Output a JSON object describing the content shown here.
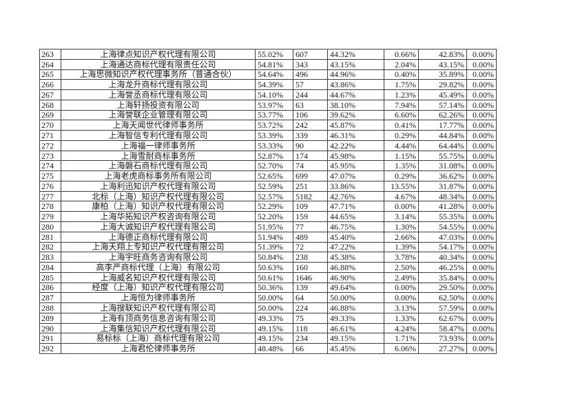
{
  "colors": {
    "border": "#3d3d3d",
    "text": "#1a1a1a",
    "background": "#ffffff"
  },
  "table": {
    "rows": [
      [
        "263",
        "上海律点知识产权代理有限公司",
        "55.02%",
        "607",
        "44.32%",
        "0.66%",
        "42.83%",
        "0.00%"
      ],
      [
        "264",
        "上海通达商标代理有限责任公司",
        "54.81%",
        "343",
        "43.15%",
        "2.04%",
        "43.15%",
        "0.00%"
      ],
      [
        "265",
        "上海思微知识产权代理事务所（普通合伙）",
        "54.64%",
        "496",
        "44.96%",
        "0.40%",
        "35.89%",
        "0.00%"
      ],
      [
        "266",
        "上海龙升商标代理有限公司",
        "54.39%",
        "57",
        "43.86%",
        "1.75%",
        "29.82%",
        "0.00%"
      ],
      [
        "267",
        "上海誉丞商标代理有限公司",
        "54.10%",
        "244",
        "44.67%",
        "1.23%",
        "45.49%",
        "0.00%"
      ],
      [
        "268",
        "上海轩扬投资有限公司",
        "53.97%",
        "63",
        "38.10%",
        "7.94%",
        "57.14%",
        "0.00%"
      ],
      [
        "269",
        "上海誉联企业管理有限公司",
        "53.77%",
        "106",
        "39.62%",
        "6.60%",
        "62.26%",
        "0.00%"
      ],
      [
        "270",
        "上海天闻世代律师事务所",
        "53.72%",
        "242",
        "45.87%",
        "0.41%",
        "17.77%",
        "0.00%"
      ],
      [
        "271",
        "上海智信专利代理有限公司",
        "53.39%",
        "339",
        "46.31%",
        "0.29%",
        "44.84%",
        "0.00%"
      ],
      [
        "272",
        "上海福一律师事务所",
        "53.33%",
        "90",
        "42.22%",
        "4.44%",
        "64.44%",
        "0.00%"
      ],
      [
        "273",
        "上海雪耐商标事务所",
        "52.87%",
        "174",
        "45.98%",
        "1.15%",
        "55.75%",
        "0.00%"
      ],
      [
        "274",
        "上海磐石商标代理有限公司",
        "52.70%",
        "74",
        "45.95%",
        "1.35%",
        "31.08%",
        "0.00%"
      ],
      [
        "275",
        "上海老虎商标事务所有限公司",
        "52.65%",
        "699",
        "47.07%",
        "0.29%",
        "36.62%",
        "0.00%"
      ],
      [
        "276",
        "上海利迅知识产权代理有限公司",
        "52.59%",
        "251",
        "33.86%",
        "13.55%",
        "31.87%",
        "0.00%"
      ],
      [
        "277",
        "北标（上海）知识产权代理有限公司",
        "52.57%",
        "5182",
        "42.76%",
        "4.67%",
        "48.34%",
        "0.00%"
      ],
      [
        "278",
        "康柏（上海）知识产权代理有限公司",
        "52.29%",
        "109",
        "47.71%",
        "0.00%",
        "41.28%",
        "0.00%"
      ],
      [
        "279",
        "上海华拓知识产权咨询有限公司",
        "52.20%",
        "159",
        "44.65%",
        "3.14%",
        "55.35%",
        "0.00%"
      ],
      [
        "280",
        "上海大诚知识产权代理有限公司",
        "51.95%",
        "77",
        "46.75%",
        "1.30%",
        "54.55%",
        "0.00%"
      ],
      [
        "281",
        "上海德正商标代理有限公司",
        "51.94%",
        "489",
        "45.40%",
        "2.66%",
        "47.03%",
        "0.00%"
      ],
      [
        "282",
        "上海天翔上专知识产权代理有限公司",
        "51.39%",
        "72",
        "47.22%",
        "1.39%",
        "54.17%",
        "0.00%"
      ],
      [
        "283",
        "上海宇旺商务咨询有限公司",
        "50.84%",
        "238",
        "45.38%",
        "3.78%",
        "40.34%",
        "0.00%"
      ],
      [
        "284",
        "高李严商标代理（上海）有限公司",
        "50.63%",
        "160",
        "46.88%",
        "2.50%",
        "46.25%",
        "0.00%"
      ],
      [
        "285",
        "上海威名知识产权代理有限公司",
        "50.61%",
        "1646",
        "46.90%",
        "2.49%",
        "35.84%",
        "0.00%"
      ],
      [
        "286",
        "经度（上海）知识产权代理有限公司",
        "50.36%",
        "139",
        "49.64%",
        "0.00%",
        "29.50%",
        "0.00%"
      ],
      [
        "287",
        "上海恒为律师事务所",
        "50.00%",
        "64",
        "50.00%",
        "0.00%",
        "62.50%",
        "0.00%"
      ],
      [
        "288",
        "上海搜联知识产权代理有限公司",
        "50.00%",
        "224",
        "46.88%",
        "3.13%",
        "57.59%",
        "0.00%"
      ],
      [
        "289",
        "上海有顶商务信息咨询有限公司",
        "49.33%",
        "75",
        "49.33%",
        "1.33%",
        "62.67%",
        "0.00%"
      ],
      [
        "290",
        "上海集信知识产权代理有限公司",
        "49.15%",
        "118",
        "46.61%",
        "4.24%",
        "58.47%",
        "0.00%"
      ],
      [
        "291",
        "易标标（上海）商标代理有限公司",
        "49.15%",
        "234",
        "49.15%",
        "1.71%",
        "73.93%",
        "0.00%"
      ],
      [
        "292",
        "上海君伦律师事务所",
        "48.48%",
        "66",
        "45.45%",
        "6.06%",
        "27.27%",
        "0.00%"
      ]
    ]
  }
}
